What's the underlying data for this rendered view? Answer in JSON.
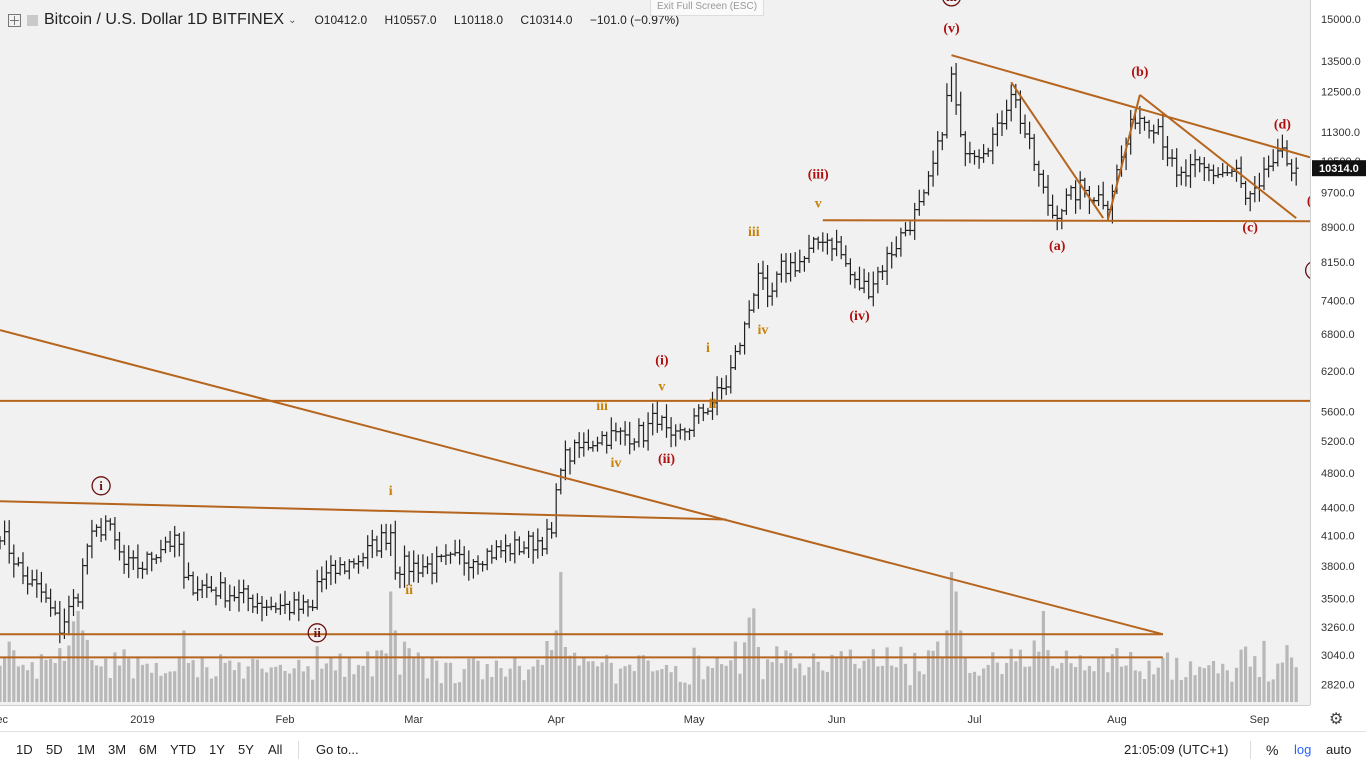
{
  "header": {
    "symbol_title": "Bitcoin / U.S. Dollar  1D  BITFINEX",
    "dropdown_glyph": "⌵",
    "ohlc": {
      "open": "O10412.0",
      "high": "H10557.0",
      "low": "L10118.0",
      "close": "C10314.0",
      "change": "−101.0 (−0.97%)"
    },
    "exit_fullscreen": "Exit Full Screen (ESC)"
  },
  "bottom_bar": {
    "ranges": [
      "1D",
      "5D",
      "1M",
      "3M",
      "6M",
      "YTD",
      "1Y",
      "5Y",
      "All"
    ],
    "goto": "Go to...",
    "clock": "21:05:09 (UTC+1)",
    "percent": "%",
    "log": "log",
    "auto": "auto"
  },
  "colors": {
    "bull": "#222222",
    "bear": "#222222",
    "volume": "#b8b8b8",
    "trendline": "#b5651d",
    "wave_red": "#b01010",
    "wave_orange": "#c8820a",
    "last_price_bg": "#111111",
    "log_link": "#2962ff"
  },
  "chart_data": {
    "type": "ohlc",
    "title": "Bitcoin / U.S. Dollar 1D BITFINEX",
    "log_scale": true,
    "ylim": [
      2700,
      15500
    ],
    "y_ticks": [
      2820,
      3040,
      3260,
      3500,
      3800,
      4100,
      4400,
      4800,
      5200,
      5600,
      6200,
      6800,
      7400,
      8150,
      8900,
      9700,
      10500,
      11300,
      12500,
      13500,
      15000
    ],
    "y_tick_labels": [
      "2820.0",
      "3040.0",
      "3260.0",
      "3500.0",
      "3800.0",
      "4100.0",
      "4400.0",
      "4800.0",
      "5200.0",
      "5600.0",
      "6200.0",
      "6800.0",
      "7400.0",
      "8150.0",
      "8900.0",
      "9700.0",
      "10500.0",
      "11300.0",
      "12500.0",
      "13500.0",
      "15000.0"
    ],
    "last_price": 10314.0,
    "last_price_label": "10314.0",
    "x_start": "2018-12-01",
    "x_end": "2019-09-12",
    "x_ticks": [
      {
        "date": "2018-12-01",
        "label": "ec"
      },
      {
        "date": "2019-01-01",
        "label": "2019"
      },
      {
        "date": "2019-02-01",
        "label": "Feb"
      },
      {
        "date": "2019-03-01",
        "label": "Mar"
      },
      {
        "date": "2019-04-01",
        "label": "Apr"
      },
      {
        "date": "2019-05-01",
        "label": "May"
      },
      {
        "date": "2019-06-01",
        "label": "Jun"
      },
      {
        "date": "2019-07-01",
        "label": "Jul"
      },
      {
        "date": "2019-08-01",
        "label": "Aug"
      },
      {
        "date": "2019-09-01",
        "label": "Sep"
      }
    ],
    "price_path": [
      [
        "2018-12-01",
        4150
      ],
      [
        "2018-12-06",
        3700
      ],
      [
        "2018-12-10",
        3550
      ],
      [
        "2018-12-14",
        3250
      ],
      [
        "2018-12-18",
        3550
      ],
      [
        "2018-12-20",
        4000
      ],
      [
        "2018-12-24",
        4250
      ],
      [
        "2018-12-28",
        3800
      ],
      [
        "2019-01-01",
        3800
      ],
      [
        "2019-01-06",
        4050
      ],
      [
        "2019-01-09",
        4000
      ],
      [
        "2019-01-10",
        3650
      ],
      [
        "2019-01-20",
        3550
      ],
      [
        "2019-01-28",
        3450
      ],
      [
        "2019-02-07",
        3400
      ],
      [
        "2019-02-08",
        3650
      ],
      [
        "2019-02-18",
        3900
      ],
      [
        "2019-02-24",
        4150
      ],
      [
        "2019-02-25",
        3800
      ],
      [
        "2019-03-05",
        3800
      ],
      [
        "2019-03-15",
        3900
      ],
      [
        "2019-03-25",
        4000
      ],
      [
        "2019-03-31",
        4100
      ],
      [
        "2019-04-02",
        4950
      ],
      [
        "2019-04-10",
        5250
      ],
      [
        "2019-04-20",
        5300
      ],
      [
        "2019-04-23",
        5550
      ],
      [
        "2019-04-26",
        5150
      ],
      [
        "2019-05-05",
        5750
      ],
      [
        "2019-05-08",
        6000
      ],
      [
        "2019-05-12",
        6900
      ],
      [
        "2019-05-15",
        8000
      ],
      [
        "2019-05-17",
        7300
      ],
      [
        "2019-05-20",
        8000
      ],
      [
        "2019-05-25",
        8200
      ],
      [
        "2019-05-29",
        8700
      ],
      [
        "2019-06-01",
        8500
      ],
      [
        "2019-06-05",
        7700
      ],
      [
        "2019-06-08",
        7650
      ],
      [
        "2019-06-15",
        8700
      ],
      [
        "2019-06-20",
        9500
      ],
      [
        "2019-06-23",
        10800
      ],
      [
        "2019-06-26",
        13000
      ],
      [
        "2019-06-28",
        11000
      ],
      [
        "2019-07-02",
        10800
      ],
      [
        "2019-07-06",
        11300
      ],
      [
        "2019-07-09",
        12600
      ],
      [
        "2019-07-16",
        9700
      ],
      [
        "2019-07-18",
        9200
      ],
      [
        "2019-07-24",
        9800
      ],
      [
        "2019-07-30",
        9500
      ],
      [
        "2019-08-01",
        10200
      ],
      [
        "2019-08-05",
        11800
      ],
      [
        "2019-08-10",
        11500
      ],
      [
        "2019-08-14",
        10000
      ],
      [
        "2019-08-18",
        10300
      ],
      [
        "2019-08-22",
        10200
      ],
      [
        "2019-08-27",
        10200
      ],
      [
        "2019-08-29",
        9500
      ],
      [
        "2019-09-01",
        9700
      ],
      [
        "2019-09-03",
        10400
      ],
      [
        "2019-09-06",
        10600
      ],
      [
        "2019-09-09",
        10314
      ]
    ],
    "volume_spikes": [
      [
        "2019-04-02",
        1.0
      ],
      [
        "2019-06-26",
        1.0
      ],
      [
        "2019-06-27",
        0.85
      ],
      [
        "2019-05-13",
        0.65
      ],
      [
        "2019-05-14",
        0.72
      ],
      [
        "2019-07-16",
        0.7
      ],
      [
        "2019-02-24",
        0.85
      ],
      [
        "2019-02-25",
        0.55
      ],
      [
        "2019-01-10",
        0.55
      ],
      [
        "2018-12-17",
        0.62
      ],
      [
        "2018-12-18",
        0.7
      ],
      [
        "2019-03-31",
        0.4
      ]
    ],
    "trendlines": [
      {
        "p1": [
          "2018-12-01",
          6870
        ],
        "p2": [
          "2019-08-11",
          3200
        ]
      },
      {
        "p1": [
          "2018-12-01",
          4470
        ],
        "p2": [
          "2019-05-08",
          4270
        ]
      },
      {
        "p1": [
          "2018-12-01",
          5750
        ],
        "p2": [
          "2019-09-12",
          5750
        ]
      },
      {
        "p1": [
          "2018-12-01",
          3200
        ],
        "p2": [
          "2019-08-11",
          3200
        ]
      },
      {
        "p1": [
          "2018-12-01",
          3020
        ],
        "p2": [
          "2019-08-11",
          3020
        ]
      },
      {
        "p1": [
          "2019-05-29",
          9050
        ],
        "p2": [
          "2019-09-12",
          9030
        ]
      },
      {
        "p1": [
          "2019-06-26",
          13700
        ],
        "p2": [
          "2019-09-12",
          10600
        ]
      },
      {
        "p1": [
          "2019-07-09",
          12800
        ],
        "p2": [
          "2019-07-29",
          9100
        ]
      },
      {
        "p1": [
          "2019-07-30",
          9050
        ],
        "p2": [
          "2019-08-06",
          12400
        ]
      },
      {
        "p1": [
          "2019-08-06",
          12400
        ],
        "p2": [
          "2019-09-09",
          9100
        ]
      }
    ],
    "wave_labels": [
      {
        "text": "iii",
        "date": "2019-06-26",
        "price": 15700,
        "color": "red",
        "circled": true
      },
      {
        "text": "(v)",
        "date": "2019-06-26",
        "price": 14500,
        "color": "red"
      },
      {
        "text": "(b)",
        "date": "2019-08-06",
        "price": 13000,
        "color": "red"
      },
      {
        "text": "(d)",
        "date": "2019-09-06",
        "price": 11400,
        "color": "red"
      },
      {
        "text": "(e)",
        "date": "2019-09-13",
        "price": 9400,
        "color": "red"
      },
      {
        "text": "(a)",
        "date": "2019-07-19",
        "price": 8400,
        "color": "red"
      },
      {
        "text": "(c)",
        "date": "2019-08-30",
        "price": 8800,
        "color": "red"
      },
      {
        "text": "iv",
        "date": "2019-09-13",
        "price": 7900,
        "color": "red",
        "circled": true
      },
      {
        "text": "(iii)",
        "date": "2019-05-28",
        "price": 10050,
        "color": "red"
      },
      {
        "text": "(iv)",
        "date": "2019-06-06",
        "price": 7050,
        "color": "red"
      },
      {
        "text": "v",
        "date": "2019-05-28",
        "price": 9350,
        "color": "orange"
      },
      {
        "text": "iii",
        "date": "2019-05-14",
        "price": 8700,
        "color": "orange"
      },
      {
        "text": "iv",
        "date": "2019-05-16",
        "price": 6800,
        "color": "orange"
      },
      {
        "text": "i",
        "date": "2019-05-04",
        "price": 6500,
        "color": "orange"
      },
      {
        "text": "ii",
        "date": "2019-05-05",
        "price": 5650,
        "color": "orange"
      },
      {
        "text": "(i)",
        "date": "2019-04-24",
        "price": 6300,
        "color": "red"
      },
      {
        "text": "v",
        "date": "2019-04-24",
        "price": 5900,
        "color": "orange"
      },
      {
        "text": "(ii)",
        "date": "2019-04-25",
        "price": 4920,
        "color": "red"
      },
      {
        "text": "iii",
        "date": "2019-04-11",
        "price": 5620,
        "color": "orange"
      },
      {
        "text": "iv",
        "date": "2019-04-14",
        "price": 4870,
        "color": "orange"
      },
      {
        "text": "i",
        "date": "2019-02-24",
        "price": 4540,
        "color": "orange"
      },
      {
        "text": "ii",
        "date": "2019-02-28",
        "price": 3540,
        "color": "orange"
      },
      {
        "text": "i",
        "date": "2018-12-23",
        "price": 4600,
        "color": "red",
        "circled": true
      },
      {
        "text": "ii",
        "date": "2019-02-08",
        "price": 3180,
        "color": "red",
        "circled": true
      }
    ]
  }
}
